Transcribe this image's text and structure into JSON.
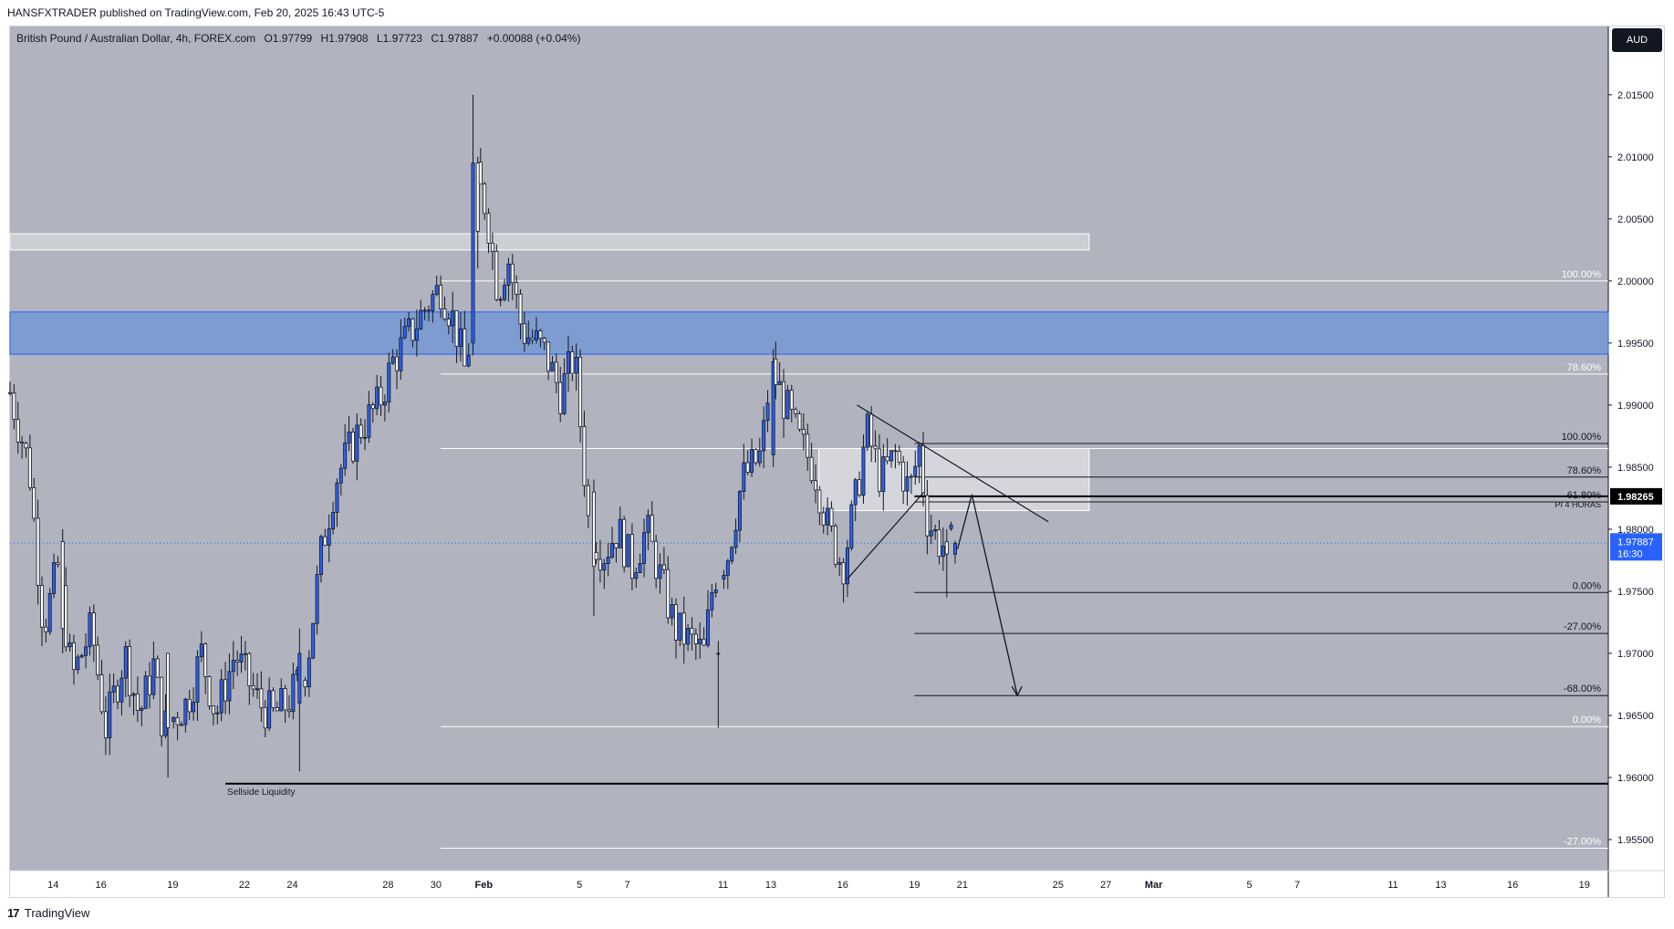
{
  "header": {
    "published": "HANSFXTRADER published on TradingView.com, Feb 20, 2025 16:43 UTC-5"
  },
  "legend": {
    "symbol": "British Pound / Australian Dollar, 4h, FOREX.com",
    "open": "O1.97799",
    "high": "H1.97908",
    "low": "L1.97723",
    "close": "C1.97887",
    "change": "+0.00088 (+0.04%)"
  },
  "currency_button": "AUD",
  "footer": {
    "brand": "TradingView",
    "logo_glyph": "17"
  },
  "colors": {
    "plot_bg": "#b1b4be",
    "candle_up": "#2962ff",
    "candle_down": "#ffffff",
    "wick": "#131722",
    "supply_zone": "#7e9ccf",
    "price_label": "#2962ff",
    "accent_black": "#000000"
  },
  "chart_data": {
    "type": "candlestick",
    "symbol": "GBPAUD",
    "timeframe": "4h",
    "ylim": [
      1.9525,
      2.0205
    ],
    "y_ticks": [
      2.015,
      2.01,
      2.005,
      2.0,
      1.995,
      1.99,
      1.985,
      1.98,
      1.975,
      1.97,
      1.965,
      1.96,
      1.955
    ],
    "y_tick_labels": [
      "2.01500",
      "2.01000",
      "2.00500",
      "2.00000",
      "1.99500",
      "1.99000",
      "1.98500",
      "1.98000",
      "1.97500",
      "1.97000",
      "1.96500",
      "1.96000",
      "1.95500"
    ],
    "x_ticks": [
      {
        "label": "14",
        "day": 14
      },
      {
        "label": "16",
        "day": 16
      },
      {
        "label": "19",
        "day": 19
      },
      {
        "label": "22",
        "day": 22
      },
      {
        "label": "24",
        "day": 24
      },
      {
        "label": "28",
        "day": 28
      },
      {
        "label": "30",
        "day": 30
      },
      {
        "label": "Feb",
        "day": 32
      },
      {
        "label": "5",
        "day": 36
      },
      {
        "label": "7",
        "day": 38
      },
      {
        "label": "11",
        "day": 42
      },
      {
        "label": "13",
        "day": 44
      },
      {
        "label": "16",
        "day": 47
      },
      {
        "label": "19",
        "day": 50
      },
      {
        "label": "21",
        "day": 52
      },
      {
        "label": "25",
        "day": 56
      },
      {
        "label": "27",
        "day": 58
      },
      {
        "label": "Mar",
        "day": 60
      },
      {
        "label": "5",
        "day": 64
      },
      {
        "label": "7",
        "day": 66
      },
      {
        "label": "11",
        "day": 70
      },
      {
        "label": "13",
        "day": 72
      },
      {
        "label": "16",
        "day": 75
      },
      {
        "label": "19",
        "day": 78
      }
    ],
    "x_range_days": [
      12.2,
      79.0
    ],
    "price_path": [
      [
        12.2,
        1.991
      ],
      [
        13.0,
        1.985
      ],
      [
        13.6,
        1.972
      ],
      [
        14.2,
        1.977
      ],
      [
        14.8,
        1.968
      ],
      [
        15.6,
        1.972
      ],
      [
        16.2,
        1.964
      ],
      [
        17.0,
        1.97
      ],
      [
        17.6,
        1.965
      ],
      [
        18.2,
        1.969
      ],
      [
        18.6,
        1.964
      ],
      [
        19.6,
        1.966
      ],
      [
        20.2,
        1.97
      ],
      [
        20.8,
        1.965
      ],
      [
        21.6,
        1.97
      ],
      [
        22.6,
        1.966
      ],
      [
        23.2,
        1.965
      ],
      [
        23.8,
        1.966
      ],
      [
        24.6,
        1.969
      ],
      [
        25.2,
        1.978
      ],
      [
        25.8,
        1.984
      ],
      [
        26.8,
        1.988
      ],
      [
        27.6,
        1.99
      ],
      [
        28.2,
        1.9935
      ],
      [
        29.0,
        1.996
      ],
      [
        29.6,
        1.998
      ],
      [
        30.2,
        1.9995
      ],
      [
        30.8,
        1.9965
      ],
      [
        31.3,
        1.992
      ],
      [
        31.7,
        2.008
      ],
      [
        32.1,
        2.006
      ],
      [
        32.6,
        1.999
      ],
      [
        33.0,
        2.002
      ],
      [
        33.6,
        1.996
      ],
      [
        34.2,
        1.995
      ],
      [
        34.6,
        1.994
      ],
      [
        35.2,
        1.991
      ],
      [
        35.8,
        1.994
      ],
      [
        36.4,
        1.98
      ],
      [
        37.0,
        1.978
      ],
      [
        37.6,
        1.98
      ],
      [
        38.2,
        1.977
      ],
      [
        38.8,
        1.98
      ],
      [
        39.4,
        1.976
      ],
      [
        40.0,
        1.972
      ],
      [
        40.6,
        1.971
      ],
      [
        41.2,
        1.97
      ],
      [
        41.6,
        1.976
      ],
      [
        42.2,
        1.978
      ],
      [
        42.8,
        1.984
      ],
      [
        43.6,
        1.986
      ],
      [
        44.0,
        1.993
      ],
      [
        44.6,
        1.99
      ],
      [
        45.2,
        1.987
      ],
      [
        45.8,
        1.985
      ],
      [
        46.4,
        1.98
      ],
      [
        47.0,
        1.977
      ],
      [
        47.6,
        1.983
      ],
      [
        48.0,
        1.988
      ],
      [
        48.6,
        1.984
      ],
      [
        49.2,
        1.986
      ],
      [
        49.8,
        1.983
      ],
      [
        50.2,
        1.9865
      ],
      [
        50.5,
        1.981
      ],
      [
        51.0,
        1.979
      ],
      [
        51.4,
        1.9785
      ],
      [
        51.7,
        1.9789
      ]
    ],
    "anchored_candles": [
      {
        "day": 14.4,
        "o": 1.979,
        "h": 1.98,
        "l": 1.97,
        "c": 1.972
      },
      {
        "day": 18.8,
        "o": 1.97,
        "h": 1.969,
        "l": 1.96,
        "c": 1.964
      },
      {
        "day": 24.3,
        "o": 1.966,
        "h": 1.972,
        "l": 1.9605,
        "c": 1.97
      },
      {
        "day": 31.55,
        "o": 1.995,
        "h": 2.015,
        "l": 1.994,
        "c": 2.0095
      },
      {
        "day": 31.75,
        "o": 2.0095,
        "h": 2.01,
        "l": 2.001,
        "c": 2.004
      },
      {
        "day": 36.6,
        "o": 1.983,
        "h": 1.984,
        "l": 1.973,
        "c": 1.977
      },
      {
        "day": 41.8,
        "o": 1.97,
        "h": 1.971,
        "l": 1.964,
        "c": 1.97
      },
      {
        "day": 44.1,
        "o": 1.986,
        "h": 1.9945,
        "l": 1.985,
        "c": 1.9935
      },
      {
        "day": 51.35,
        "o": 1.979,
        "h": 1.98,
        "l": 1.9745,
        "c": 1.978
      },
      {
        "day": 51.7,
        "o": 1.97799,
        "h": 1.97908,
        "l": 1.97723,
        "c": 1.97887
      }
    ],
    "zones": [
      {
        "y1": 2.0038,
        "y2": 2.0025,
        "d1": 12.2,
        "d2": 57.3,
        "kind": "outline"
      },
      {
        "y1": 1.9975,
        "y2": 1.9941,
        "d1": 12.2,
        "d2": 79.0,
        "kind": "supply"
      },
      {
        "y1": 1.9865,
        "y2": 1.9815,
        "d1": 46.0,
        "d2": 57.3,
        "kind": "box"
      }
    ],
    "levels": [
      {
        "y": 2.0,
        "label": "100.00%",
        "d1": 30.2,
        "color": "#ffffff"
      },
      {
        "y": 1.9925,
        "label": "78.60%",
        "d1": 30.2,
        "color": "#ffffff"
      },
      {
        "y": 1.9865,
        "label": "",
        "d1": 30.2,
        "color": "#ffffff"
      },
      {
        "y": 1.9641,
        "label": "0.00%",
        "d1": 30.2,
        "color": "#ffffff"
      },
      {
        "y": 1.9543,
        "label": "-27.00%",
        "d1": 30.2,
        "color": "#ffffff"
      },
      {
        "y": 1.9869,
        "label": "100.00%",
        "d1": 50.0,
        "color": "#131722"
      },
      {
        "y": 1.9842,
        "label": "78.60%",
        "d1": 50.0,
        "color": "#131722"
      },
      {
        "y": 1.9822,
        "label": "61.80%",
        "d1": 50.0,
        "color": "#131722"
      },
      {
        "y": 1.9749,
        "label": "0.00%",
        "d1": 50.0,
        "color": "#131722"
      },
      {
        "y": 1.9716,
        "label": "-27.00%",
        "d1": 50.0,
        "color": "#131722"
      },
      {
        "y": 1.9666,
        "label": "-68.00%",
        "d1": 50.0,
        "color": "#131722"
      }
    ],
    "pi_level": {
      "y": 1.98265,
      "label": "PI 4 HORAS",
      "price_label": "1.98265"
    },
    "liquidity": {
      "y": 1.9595,
      "label": "Sellside Liquidity",
      "d1": 21.2
    },
    "last_price": {
      "value": "1.97887",
      "countdown": "16:30",
      "y": 1.97887
    },
    "triangle": {
      "upper": [
        [
          47.6,
          1.99
        ],
        [
          55.6,
          1.9806
        ]
      ],
      "lower": [
        [
          47.2,
          1.976
        ],
        [
          50.4,
          1.983
        ]
      ]
    },
    "projection": [
      [
        51.8,
        1.9784
      ],
      [
        52.4,
        1.9828
      ],
      [
        54.3,
        1.9666
      ]
    ]
  }
}
